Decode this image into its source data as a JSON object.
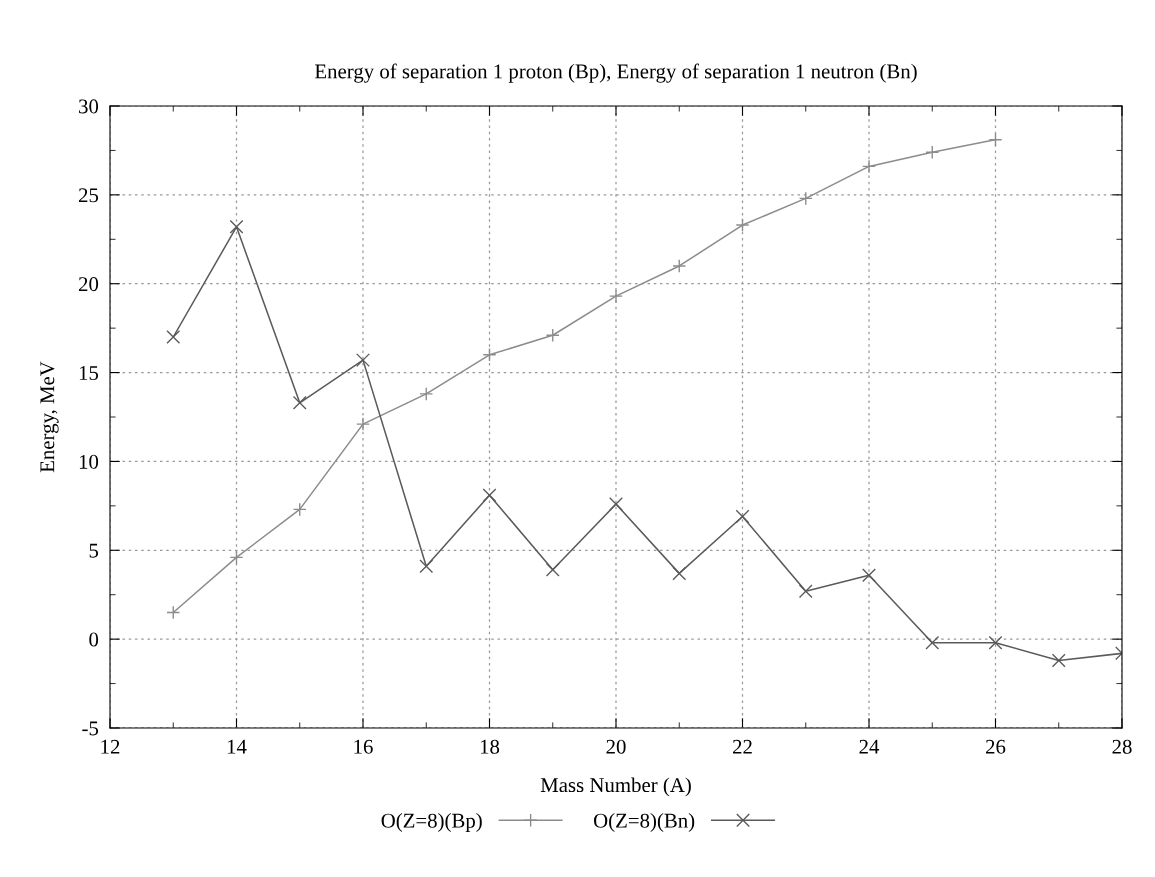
{
  "chart_data": {
    "type": "line",
    "title": "Energy of separation 1 proton (Bp), Energy of separation 1 neutron (Bn)",
    "xlabel": "Mass Number (A)",
    "ylabel": "Energy, MeV",
    "xlim": [
      12,
      28
    ],
    "xticks": [
      12,
      14,
      16,
      18,
      20,
      22,
      24,
      26,
      28
    ],
    "ylim": [
      -5,
      30
    ],
    "yticks": [
      -5,
      0,
      5,
      10,
      15,
      20,
      25,
      30
    ],
    "grid": true,
    "legend": "bottom",
    "line_style": "solid",
    "series": [
      {
        "name": "O(Z=8)(Bp)",
        "color": "#8c8c8c",
        "marker": "cross",
        "x": [
          13,
          14,
          15,
          16,
          17,
          18,
          19,
          20,
          21,
          22,
          23,
          24,
          25,
          26
        ],
        "values": [
          1.5,
          4.6,
          7.3,
          12.1,
          13.8,
          16.0,
          17.1,
          19.3,
          21.0,
          23.3,
          24.8,
          26.6,
          27.4,
          28.1
        ]
      },
      {
        "name": "O(Z=8)(Bn)",
        "color": "#5a5a5a",
        "marker": "x",
        "x": [
          13,
          14,
          15,
          16,
          17,
          18,
          19,
          20,
          21,
          22,
          23,
          24,
          25,
          26,
          27,
          28
        ],
        "values": [
          17.0,
          23.2,
          13.3,
          15.7,
          4.1,
          8.1,
          3.9,
          7.6,
          3.7,
          6.9,
          2.7,
          3.6,
          -0.2,
          -0.2,
          -1.2,
          -0.8
        ]
      }
    ]
  }
}
